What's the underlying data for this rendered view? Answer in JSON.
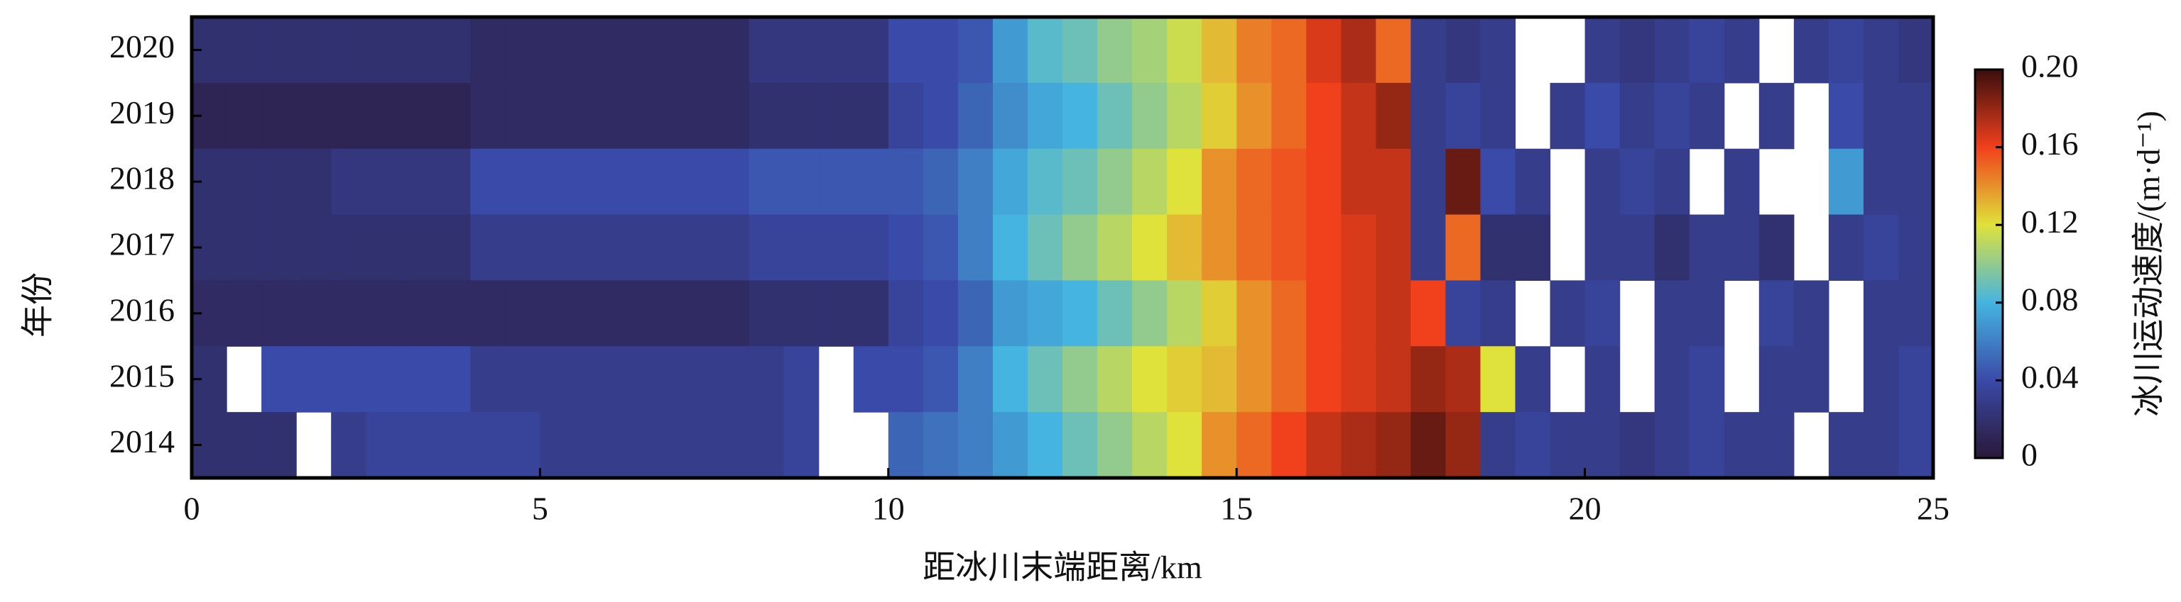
{
  "chart_data": {
    "type": "heatmap",
    "xlabel": "距冰川末端距离/km",
    "ylabel": "年份",
    "colorbar_label": "冰川运动速度/(m·d⁻¹)",
    "categories": [
      "2020",
      "2019",
      "2018",
      "2017",
      "2016",
      "2015",
      "2014"
    ],
    "bins": [
      0,
      0.5,
      1,
      1.5,
      2,
      2.5,
      3,
      3.5,
      4,
      4.5,
      5,
      5.5,
      6,
      6.5,
      7,
      7.5,
      8,
      8.5,
      9,
      9.5,
      10,
      10.5,
      11,
      11.5,
      12,
      12.5,
      13,
      13.5,
      14,
      14.5,
      15,
      15.5,
      16,
      16.5,
      17,
      17.5,
      18,
      18.5,
      19,
      19.5,
      20,
      20.5,
      21,
      21.5,
      22,
      22.5,
      23,
      23.5,
      24,
      24.5,
      25
    ],
    "values": [
      [
        0.02,
        0.02,
        0.02,
        0.02,
        0.02,
        0.02,
        0.02,
        0.02,
        0.015,
        0.015,
        0.015,
        0.015,
        0.015,
        0.015,
        0.015,
        0.015,
        0.025,
        0.025,
        0.025,
        0.025,
        0.04,
        0.04,
        0.045,
        0.07,
        0.085,
        0.09,
        0.1,
        0.105,
        0.115,
        0.13,
        0.145,
        0.15,
        0.165,
        0.175,
        0.15,
        0.03,
        0.025,
        0.03,
        null,
        null,
        0.03,
        0.025,
        0.03,
        0.035,
        0.03,
        null,
        0.03,
        0.035,
        0.03,
        0.025
      ],
      [
        0.01,
        0.01,
        0.01,
        0.01,
        0.01,
        0.01,
        0.01,
        0.01,
        0.015,
        0.015,
        0.015,
        0.015,
        0.015,
        0.015,
        0.015,
        0.015,
        0.02,
        0.02,
        0.02,
        0.02,
        0.035,
        0.04,
        0.05,
        0.065,
        0.075,
        0.08,
        0.09,
        0.1,
        0.11,
        0.125,
        0.14,
        0.15,
        0.16,
        0.17,
        0.18,
        0.03,
        0.035,
        0.03,
        null,
        0.03,
        0.04,
        0.03,
        0.035,
        0.03,
        null,
        0.03,
        null,
        0.04,
        0.03,
        0.03
      ],
      [
        0.02,
        0.02,
        0.02,
        0.02,
        0.025,
        0.025,
        0.025,
        0.025,
        0.04,
        0.04,
        0.04,
        0.04,
        0.04,
        0.04,
        0.04,
        0.04,
        0.045,
        0.045,
        0.045,
        0.045,
        0.045,
        0.05,
        0.06,
        0.075,
        0.085,
        0.09,
        0.1,
        0.11,
        0.12,
        0.14,
        0.15,
        0.155,
        0.16,
        0.17,
        0.17,
        0.03,
        0.19,
        0.04,
        0.03,
        null,
        0.03,
        0.035,
        0.03,
        null,
        0.03,
        null,
        null,
        0.07,
        0.03,
        0.03
      ],
      [
        0.02,
        0.02,
        0.02,
        0.02,
        0.02,
        0.02,
        0.02,
        0.02,
        0.03,
        0.03,
        0.03,
        0.03,
        0.03,
        0.03,
        0.03,
        0.03,
        0.035,
        0.035,
        0.035,
        0.035,
        0.04,
        0.045,
        0.06,
        0.08,
        0.09,
        0.1,
        0.11,
        0.12,
        0.13,
        0.14,
        0.15,
        0.155,
        0.16,
        0.165,
        0.17,
        0.03,
        0.15,
        0.02,
        0.02,
        null,
        0.03,
        0.03,
        0.02,
        0.03,
        0.03,
        0.02,
        null,
        0.03,
        0.035,
        0.03
      ],
      [
        0.015,
        0.015,
        0.015,
        0.015,
        0.015,
        0.015,
        0.015,
        0.015,
        0.015,
        0.015,
        0.015,
        0.015,
        0.015,
        0.015,
        0.015,
        0.015,
        0.02,
        0.02,
        0.02,
        0.02,
        0.035,
        0.04,
        0.05,
        0.07,
        0.075,
        0.08,
        0.09,
        0.1,
        0.11,
        0.125,
        0.14,
        0.15,
        0.16,
        0.165,
        0.17,
        0.16,
        0.035,
        0.03,
        null,
        0.03,
        0.035,
        null,
        0.03,
        0.03,
        null,
        0.035,
        0.03,
        null,
        0.03,
        0.03
      ],
      [
        0.02,
        null,
        0.04,
        0.04,
        0.04,
        0.04,
        0.04,
        0.04,
        0.03,
        0.03,
        0.03,
        0.03,
        0.03,
        0.03,
        0.03,
        0.03,
        0.03,
        0.035,
        null,
        0.04,
        0.04,
        0.045,
        0.06,
        0.08,
        0.09,
        0.1,
        0.11,
        0.12,
        0.125,
        0.13,
        0.14,
        0.15,
        0.16,
        0.165,
        0.17,
        0.18,
        0.175,
        0.12,
        0.03,
        null,
        0.03,
        null,
        0.03,
        0.035,
        null,
        0.03,
        0.03,
        null,
        0.03,
        0.035
      ],
      [
        0.02,
        0.02,
        0.02,
        null,
        0.03,
        0.035,
        0.035,
        0.035,
        0.035,
        0.035,
        0.03,
        0.03,
        0.03,
        0.03,
        0.03,
        0.03,
        0.03,
        0.035,
        null,
        null,
        0.05,
        0.055,
        0.06,
        0.07,
        0.08,
        0.09,
        0.1,
        0.11,
        0.12,
        0.14,
        0.15,
        0.16,
        0.17,
        0.175,
        0.18,
        0.19,
        0.18,
        0.03,
        0.035,
        0.03,
        0.03,
        0.025,
        0.03,
        0.035,
        0.03,
        0.03,
        null,
        0.03,
        0.03,
        0.035
      ]
    ],
    "colormap": [
      "#2a1838",
      "#3a4aa8",
      "#45b4e0",
      "#dfe23a",
      "#f0401c",
      "#3a0e0e"
    ],
    "xlim": [
      0,
      25
    ],
    "xticks": [
      0,
      5,
      10,
      15,
      20,
      25
    ],
    "clim": [
      0,
      0.2
    ],
    "cticks": [
      0,
      0.04,
      0.08,
      0.12,
      0.16,
      {
        "value": 0.2,
        "label": "0.20"
      }
    ]
  }
}
